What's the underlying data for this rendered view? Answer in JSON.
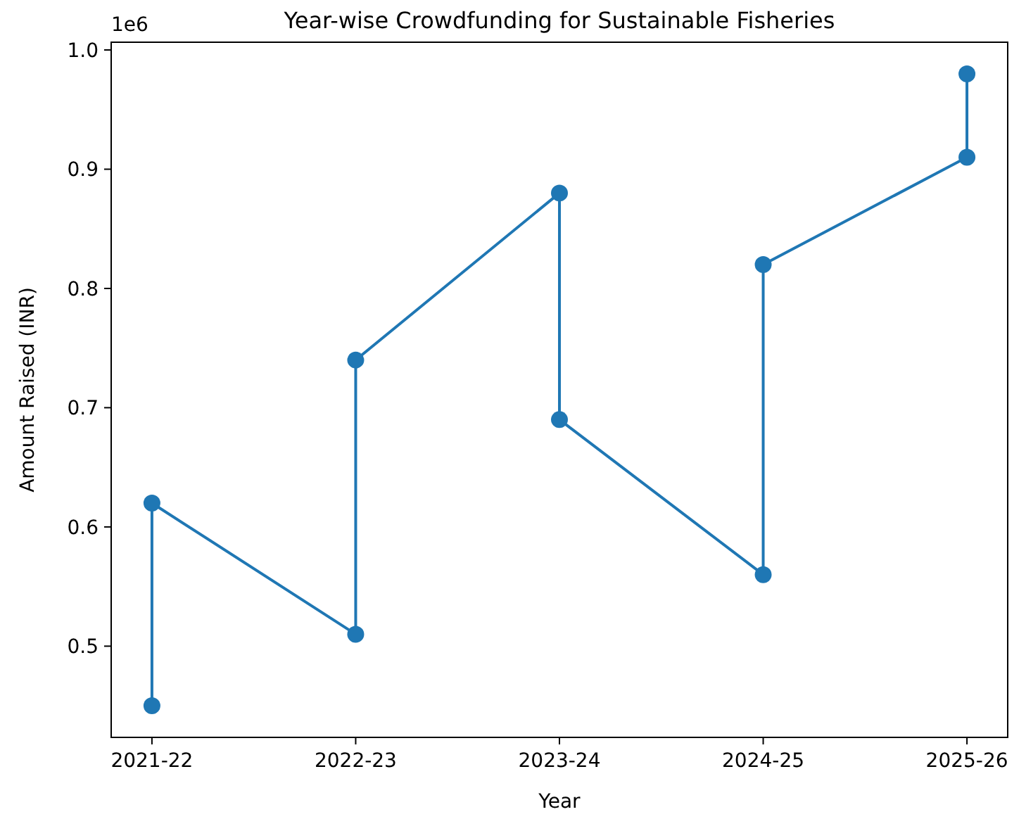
{
  "chart_data": {
    "type": "line",
    "title": "Year-wise Crowdfunding for Sustainable Fisheries",
    "xlabel": "Year",
    "ylabel": "Amount Raised (INR)",
    "categories": [
      "2021-22",
      "2022-23",
      "2023-24",
      "2024-25",
      "2025-26"
    ],
    "series": [
      {
        "color": "#1f77b4",
        "x": [
          "2021-22",
          "2021-22",
          "2022-23",
          "2022-23",
          "2023-24",
          "2023-24",
          "2024-25",
          "2024-25",
          "2025-26",
          "2025-26"
        ],
        "values": [
          0.45,
          0.62,
          0.51,
          0.74,
          0.88,
          0.69,
          0.56,
          0.82,
          0.91,
          0.98
        ]
      }
    ],
    "ylim": [
      0.4235,
      1.0065
    ],
    "yticks": [
      0.5,
      0.6,
      0.7,
      0.8,
      0.9,
      {
        "value": 1,
        "label": "1.0"
      }
    ],
    "annotations": [
      "1e6"
    ],
    "marker": "circle",
    "line_style": "solid",
    "grid": false
  }
}
